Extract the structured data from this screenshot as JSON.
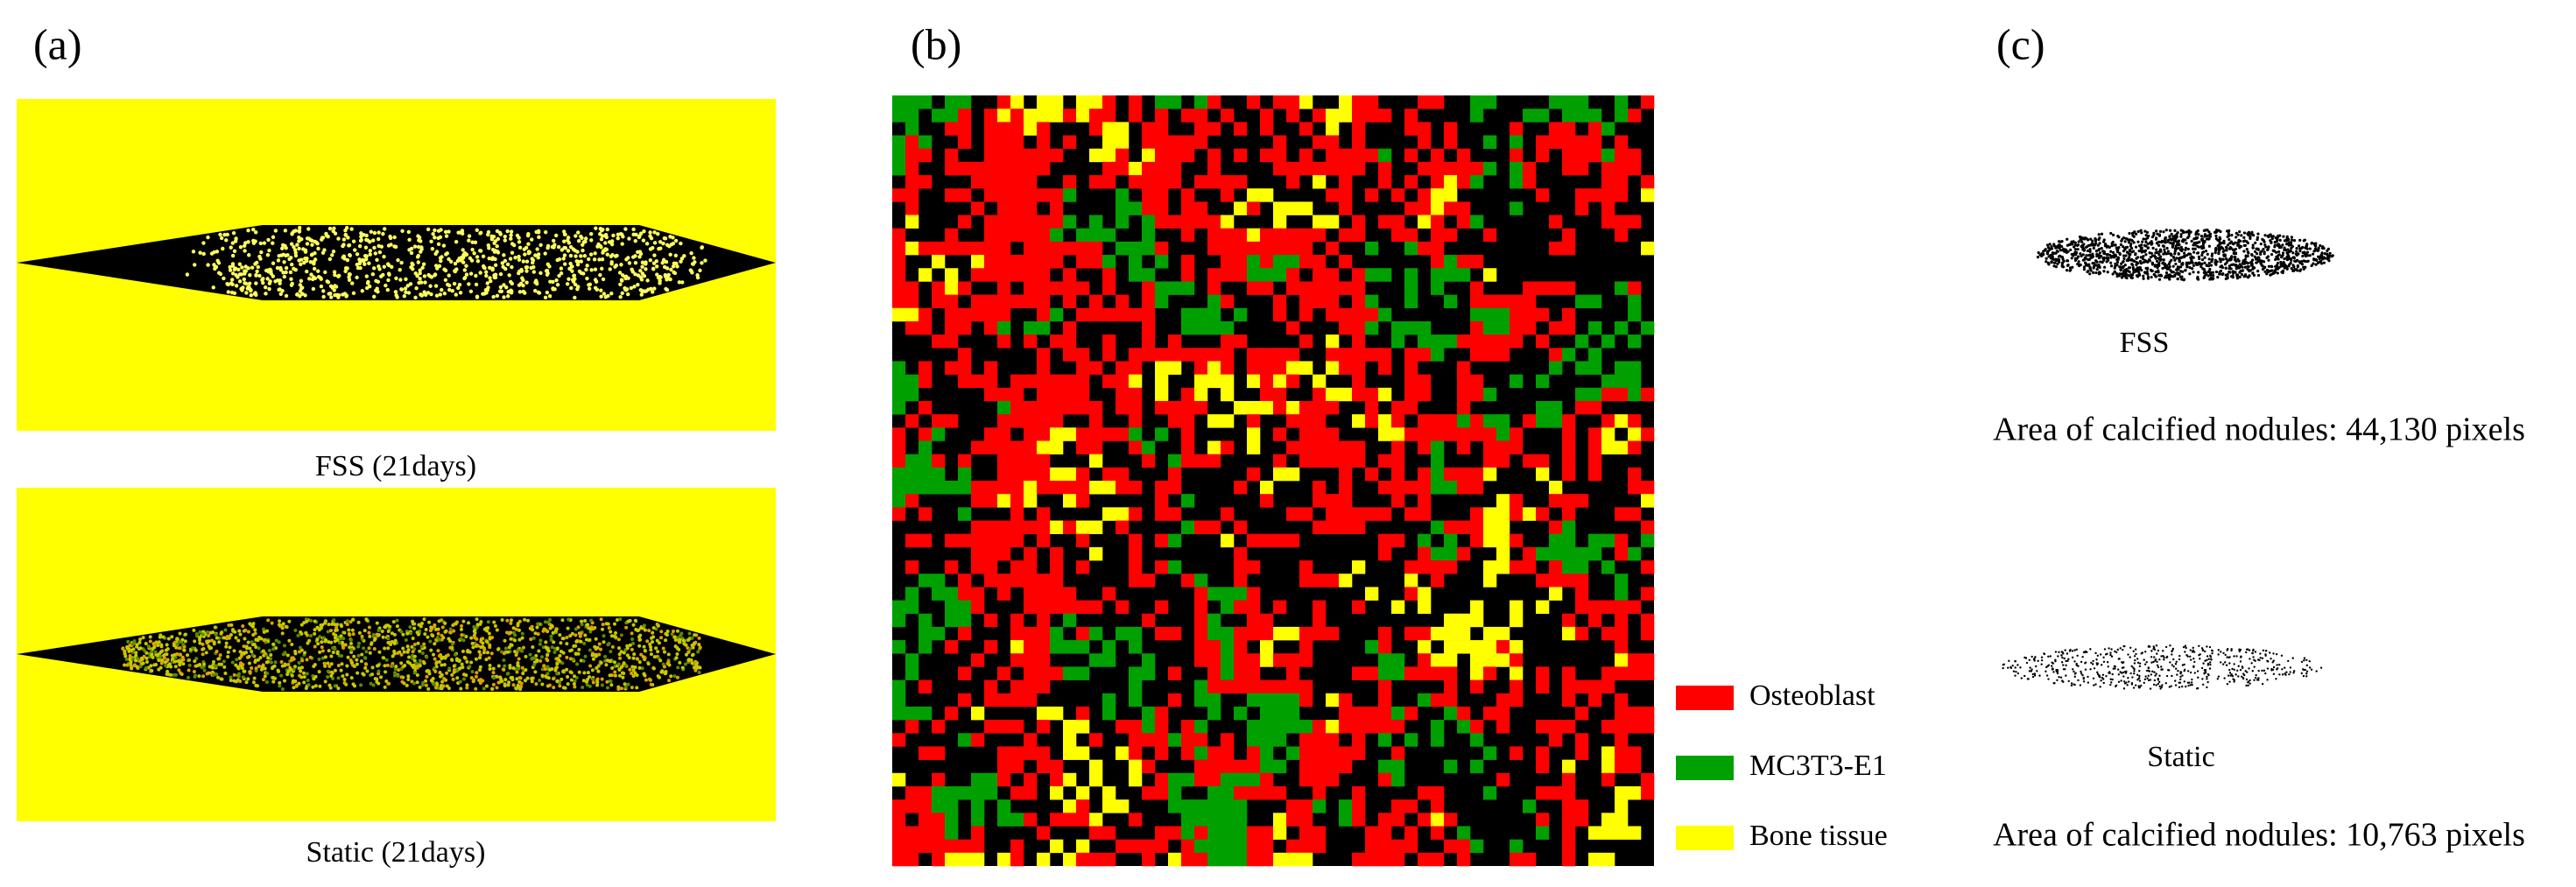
{
  "panel_a": {
    "label": "(a)",
    "captions": [
      "FSS (21days)",
      "Static (21days)"
    ]
  },
  "panel_b": {
    "label": "(b)",
    "legend": [
      {
        "name": "Osteoblast",
        "color": "#ff0000"
      },
      {
        "name": "MC3T3-E1",
        "color": "#00a000"
      },
      {
        "name": "Bone tissue",
        "color": "#ffff00"
      }
    ]
  },
  "panel_c": {
    "label": "(c)",
    "items": [
      {
        "name": "FSS",
        "area": "Area of calcified nodules: 44,130 pixels"
      },
      {
        "name": "Static",
        "area": "Area of calcified nodules: 10,763 pixels"
      }
    ]
  }
}
